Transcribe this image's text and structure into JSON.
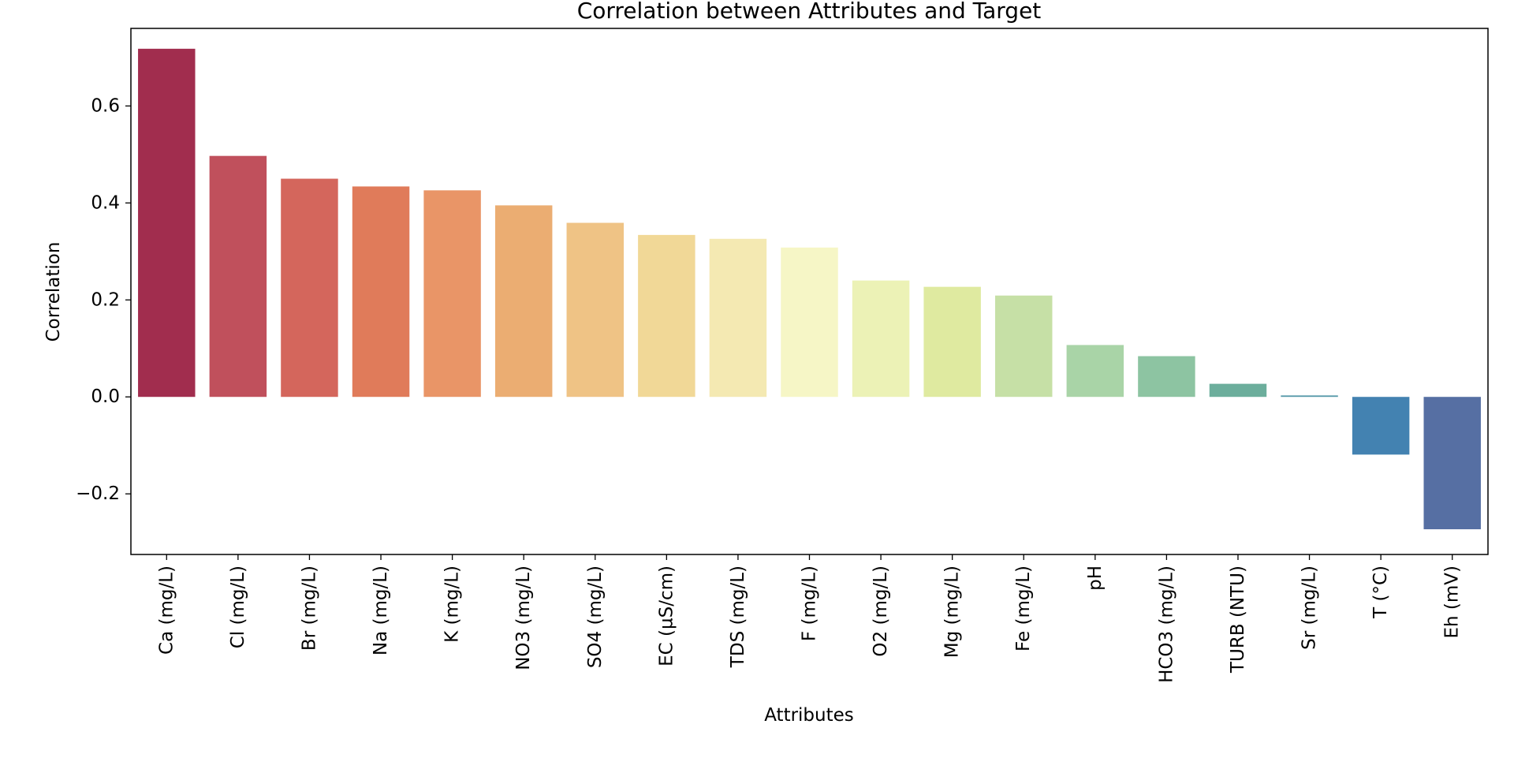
{
  "chart_data": {
    "type": "bar",
    "title": "Correlation between Attributes and Target",
    "xlabel": "Attributes",
    "ylabel": "Correlation",
    "ylim": [
      -0.325,
      0.76
    ],
    "yticks": [
      -0.2,
      0.0,
      0.2,
      0.4,
      0.6
    ],
    "ytick_labels": [
      "−0.2",
      "0.0",
      "0.2",
      "0.4",
      "0.6"
    ],
    "grid": false,
    "categories": [
      "Ca (mg/L)",
      "Cl (mg/L)",
      "Br (mg/L)",
      "Na (mg/L)",
      "K (mg/L)",
      "NO3 (mg/L)",
      "SO4 (mg/L)",
      "EC (µS/cm)",
      "TDS (mg/L)",
      "F (mg/L)",
      "O2 (mg/L)",
      "Mg (mg/L)",
      "Fe (mg/L)",
      "pH",
      "HCO3  (mg/L)",
      "TURB (NTU)",
      "Sr (mg/L)",
      "T (°C)",
      "Eh (mV)"
    ],
    "values": [
      0.718,
      0.497,
      0.45,
      0.434,
      0.426,
      0.395,
      0.359,
      0.334,
      0.326,
      0.308,
      0.24,
      0.227,
      0.209,
      0.107,
      0.084,
      0.027,
      0.003,
      -0.119,
      -0.273
    ],
    "colors": [
      "#a12d4e",
      "#c0505c",
      "#d4665c",
      "#e07b5a",
      "#e99567",
      "#ebad72",
      "#efc385",
      "#f1d897",
      "#f4e9b2",
      "#f6f6c6",
      "#ecf2b6",
      "#dfeaa0",
      "#c6e0a6",
      "#a9d4a7",
      "#8dc4a2",
      "#6cae9c",
      "#5599a8",
      "#4382b1",
      "#566fa3"
    ]
  }
}
